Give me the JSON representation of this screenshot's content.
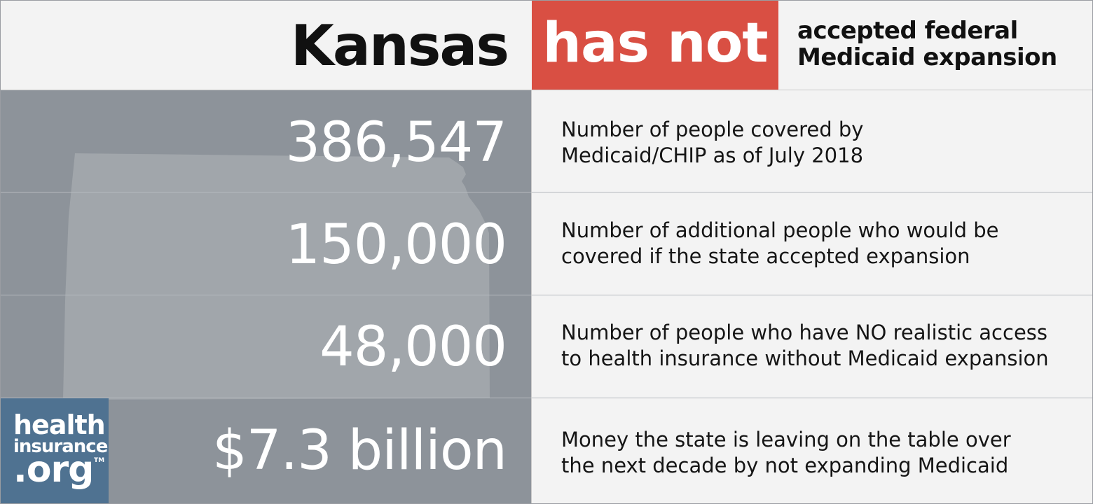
{
  "header": {
    "state": "Kansas",
    "status": "has not",
    "status_desc_line1": "accepted federal",
    "status_desc_line2": "Medicaid expansion"
  },
  "stats": [
    {
      "value": "386,547",
      "desc_line1": "Number of people covered by",
      "desc_line2": "Medicaid/CHIP as of July 2018"
    },
    {
      "value": "150,000",
      "desc_line1": "Number of additional people who would be",
      "desc_line2": "covered if the state accepted expansion"
    },
    {
      "value": "48,000",
      "desc_line1": "Number of people who have NO realistic access",
      "desc_line2": "to health insurance without Medicaid expansion"
    },
    {
      "value": "$7.3 billion",
      "desc_line1": "Money the state is leaving on the table over",
      "desc_line2": "the next decade by not expanding Medicaid"
    }
  ],
  "logo": {
    "line1": "health",
    "line2": "insurance",
    "line3": ".org",
    "tm": "TM"
  },
  "colors": {
    "accent": "#d94f43",
    "panel": "#8d939a",
    "logo_bg": "#4f7291",
    "background": "#f3f3f3"
  }
}
